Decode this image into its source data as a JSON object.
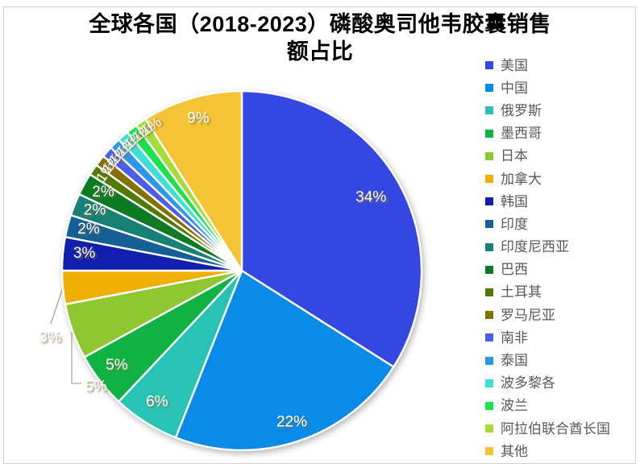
{
  "chart": {
    "title_lines": [
      "全球各国（2018-2023）磷酸奥司他韦胶囊销售",
      "额占比"
    ]
  },
  "colors": {
    "title_text": "#000000",
    "legend_text": "#595959",
    "leader_line": "#a6a6a6",
    "frame_border": "#d2d0d0",
    "slice_gap_stroke": "#ffffff",
    "label_text": "#ffffff",
    "label_shadow": "#82724a"
  },
  "chart_data": {
    "type": "pie",
    "title": "全球各国（2018-2023）磷酸奥司他韦胶囊销售额占比",
    "unit": "%",
    "legend_position": "right",
    "start_angle_deg": 0,
    "direction": "clockwise",
    "series": [
      {
        "key": "usa",
        "name": "美国",
        "pct": 34,
        "pct_label": "34%",
        "color": "#3447e0",
        "label_placement": "inside"
      },
      {
        "key": "china",
        "name": "中国",
        "pct": 22,
        "pct_label": "22%",
        "color": "#0a8be8",
        "label_placement": "inside"
      },
      {
        "key": "russia",
        "name": "俄罗斯",
        "pct": 6,
        "pct_label": "6%",
        "color": "#28c3b4",
        "label_placement": "inside"
      },
      {
        "key": "mexico",
        "name": "墨西哥",
        "pct": 5,
        "pct_label": "5%",
        "color": "#10b243",
        "label_placement": "inside"
      },
      {
        "key": "japan",
        "name": "日本",
        "pct": 5,
        "pct_label": "5%",
        "color": "#8ec72f",
        "label_placement": "outside"
      },
      {
        "key": "canada",
        "name": "加拿大",
        "pct": 3,
        "pct_label": "3%",
        "color": "#efaf03",
        "label_placement": "outside"
      },
      {
        "key": "south-korea",
        "name": "韩国",
        "pct": 3,
        "pct_label": "3%",
        "color": "#101fac",
        "label_placement": "inside"
      },
      {
        "key": "india",
        "name": "印度",
        "pct": 2,
        "pct_label": "2%",
        "color": "#155f97",
        "label_placement": "inside"
      },
      {
        "key": "indonesia",
        "name": "印度尼西亚",
        "pct": 2,
        "pct_label": "2%",
        "color": "#178176",
        "label_placement": "inside"
      },
      {
        "key": "brazil",
        "name": "巴西",
        "pct": 2,
        "pct_label": "2%",
        "color": "#0d7a24",
        "label_placement": "inside"
      },
      {
        "key": "turkey",
        "name": "土耳其",
        "pct": 1,
        "pct_label": "1%",
        "color": "#507a02",
        "label_placement": "rotated"
      },
      {
        "key": "romania",
        "name": "罗马尼亚",
        "pct": 1,
        "pct_label": "1%",
        "color": "#857002",
        "label_placement": "rotated"
      },
      {
        "key": "south-africa",
        "name": "南非",
        "pct": 1,
        "pct_label": "1%",
        "color": "#4e5ee4",
        "label_placement": "rotated"
      },
      {
        "key": "thailand",
        "name": "泰国",
        "pct": 1,
        "pct_label": "1%",
        "color": "#2e96e8",
        "label_placement": "rotated"
      },
      {
        "key": "puerto-rico",
        "name": "波多黎各",
        "pct": 1,
        "pct_label": "1%",
        "color": "#3ee0d3",
        "label_placement": "rotated"
      },
      {
        "key": "poland",
        "name": "波兰",
        "pct": 1,
        "pct_label": "1%",
        "color": "#1be24b",
        "label_placement": "rotated"
      },
      {
        "key": "uae",
        "name": "阿拉伯联合酋长国",
        "pct": 1,
        "pct_label": "1%",
        "color": "#a6dc39",
        "label_placement": "rotated"
      },
      {
        "key": "other",
        "name": "其他",
        "pct": 9,
        "pct_label": "9%",
        "color": "#f4c436",
        "label_placement": "inside"
      }
    ]
  }
}
